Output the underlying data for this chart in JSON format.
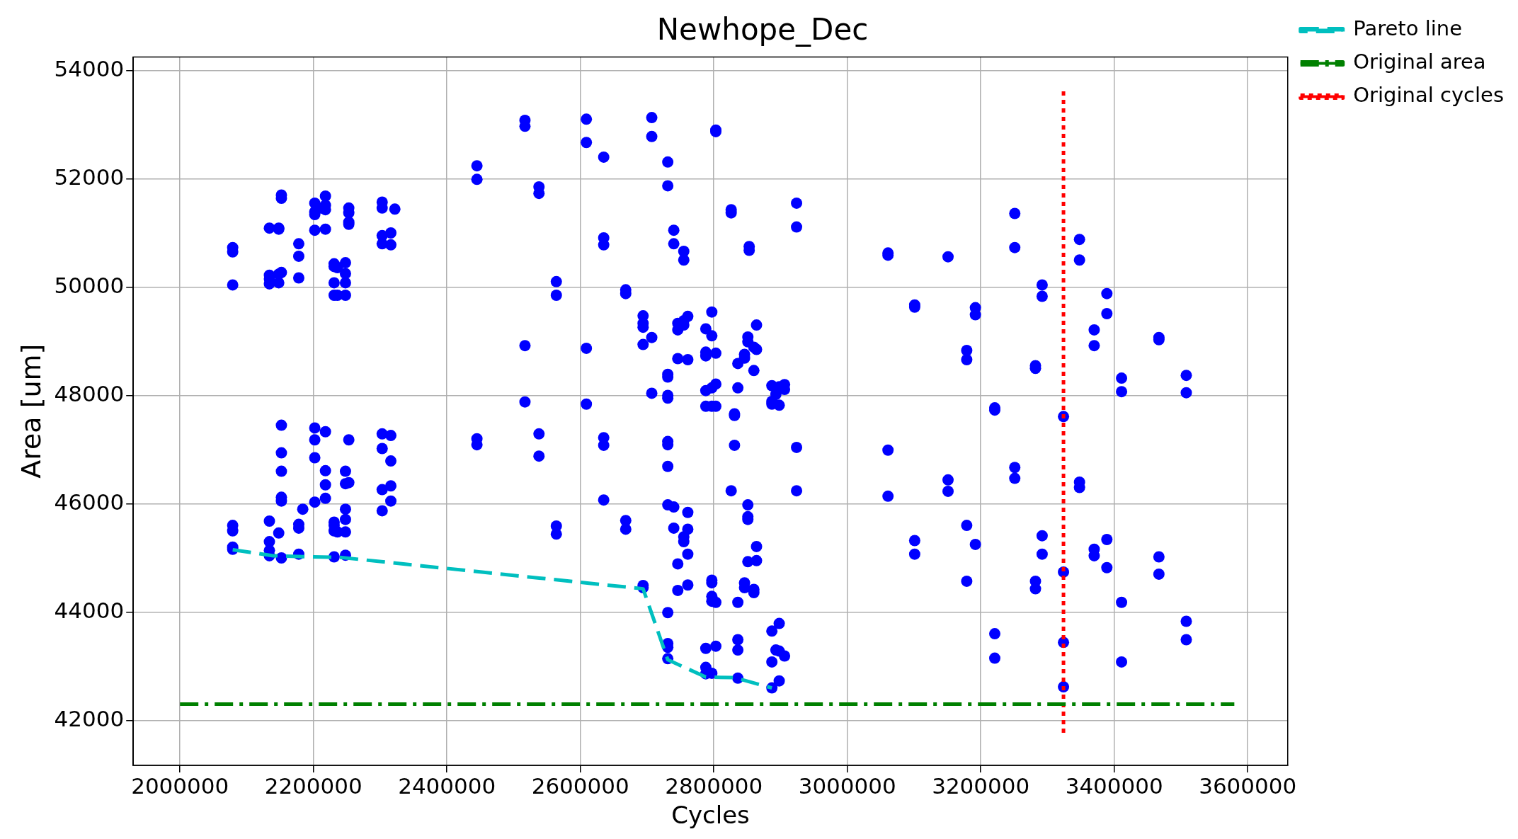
{
  "chart_data": {
    "type": "scatter",
    "title": "Newhope_Dec",
    "xlabel": "Cycles",
    "ylabel": "Area [um]",
    "xlim": [
      1930000,
      3660000
    ],
    "ylim": [
      41170,
      54250
    ],
    "xticks": [
      2000000,
      2200000,
      2400000,
      2600000,
      2800000,
      3000000,
      3200000,
      3400000,
      3600000
    ],
    "yticks": [
      42000,
      44000,
      46000,
      48000,
      50000,
      52000,
      54000
    ],
    "grid": true,
    "legend": "right",
    "marker": "circle",
    "series": [
      {
        "type": "scatter",
        "color": "#0000ff",
        "x": [
          2079000,
          2079000,
          2079000,
          2079000,
          2079000,
          2079000,
          2079000,
          2134000,
          2134000,
          2134000,
          2134000,
          2134000,
          2134000,
          2134000,
          2134000,
          2148000,
          2148000,
          2148000,
          2148000,
          2148000,
          2152000,
          2152000,
          2152000,
          2152000,
          2152000,
          2152000,
          2152000,
          2152000,
          2152000,
          2178000,
          2178000,
          2178000,
          2178000,
          2178000,
          2178000,
          2184000,
          2202000,
          2202000,
          2202000,
          2202000,
          2202000,
          2202000,
          2202000,
          2202000,
          2211000,
          2218000,
          2218000,
          2218000,
          2218000,
          2218000,
          2218000,
          2218000,
          2218000,
          2231000,
          2231000,
          2231000,
          2231000,
          2231000,
          2231000,
          2231000,
          2231000,
          2236000,
          2236000,
          2236000,
          2248000,
          2248000,
          2248000,
          2248000,
          2248000,
          2248000,
          2248000,
          2248000,
          2248000,
          2248000,
          2253000,
          2253000,
          2253000,
          2253000,
          2253000,
          2253000,
          2303000,
          2303000,
          2303000,
          2303000,
          2303000,
          2303000,
          2303000,
          2303000,
          2316000,
          2316000,
          2316000,
          2316000,
          2316000,
          2316000,
          2322000,
          2445000,
          2445000,
          2445000,
          2445000,
          2517000,
          2517000,
          2517000,
          2517000,
          2538000,
          2538000,
          2538000,
          2538000,
          2564000,
          2564000,
          2564000,
          2564000,
          2609000,
          2609000,
          2609000,
          2609000,
          2635000,
          2635000,
          2635000,
          2635000,
          2635000,
          2635000,
          2668000,
          2668000,
          2668000,
          2668000,
          2694000,
          2694000,
          2694000,
          2694000,
          2694000,
          2694000,
          2707000,
          2707000,
          2707000,
          2707000,
          2731000,
          2731000,
          2731000,
          2731000,
          2731000,
          2731000,
          2731000,
          2731000,
          2731000,
          2731000,
          2731000,
          2731000,
          2731000,
          2731000,
          2740000,
          2740000,
          2740000,
          2740000,
          2746000,
          2746000,
          2746000,
          2746000,
          2746000,
          2755000,
          2755000,
          2755000,
          2755000,
          2755000,
          2755000,
          2761000,
          2761000,
          2761000,
          2761000,
          2761000,
          2761000,
          2788000,
          2788000,
          2788000,
          2788000,
          2788000,
          2788000,
          2788000,
          2788000,
          2797000,
          2797000,
          2797000,
          2797000,
          2797000,
          2797000,
          2797000,
          2797000,
          2797000,
          2803000,
          2803000,
          2803000,
          2803000,
          2803000,
          2803000,
          2803000,
          2826000,
          2826000,
          2826000,
          2831000,
          2831000,
          2831000,
          2836000,
          2836000,
          2836000,
          2836000,
          2836000,
          2836000,
          2846000,
          2846000,
          2846000,
          2846000,
          2851000,
          2851000,
          2851000,
          2851000,
          2851000,
          2851000,
          2853000,
          2853000,
          2860000,
          2860000,
          2860000,
          2860000,
          2864000,
          2864000,
          2864000,
          2864000,
          2887000,
          2887000,
          2887000,
          2887000,
          2887000,
          2887000,
          2893000,
          2893000,
          2898000,
          2898000,
          2898000,
          2898000,
          2898000,
          2906000,
          2906000,
          2906000,
          2924000,
          2924000,
          2924000,
          2924000,
          3061000,
          3061000,
          3061000,
          3061000,
          3101000,
          3101000,
          3101000,
          3101000,
          3151000,
          3151000,
          3151000,
          3179000,
          3179000,
          3179000,
          3179000,
          3192000,
          3192000,
          3192000,
          3221000,
          3221000,
          3221000,
          3221000,
          3251000,
          3251000,
          3251000,
          3251000,
          3282000,
          3282000,
          3282000,
          3282000,
          3292000,
          3292000,
          3292000,
          3292000,
          3324000,
          3324000,
          3324000,
          3324000,
          3348000,
          3348000,
          3348000,
          3348000,
          3370000,
          3370000,
          3370000,
          3370000,
          3389000,
          3389000,
          3389000,
          3389000,
          3411000,
          3411000,
          3411000,
          3411000,
          3467000,
          3467000,
          3467000,
          3467000,
          3508000,
          3508000,
          3508000,
          3508000
        ],
        "values": [
          50730,
          50650,
          50040,
          45600,
          45500,
          45200,
          45160,
          51090,
          50220,
          50150,
          50060,
          45680,
          45300,
          45140,
          45040,
          51090,
          51070,
          50240,
          50080,
          45460,
          51700,
          51640,
          50270,
          47450,
          46940,
          46600,
          46120,
          46050,
          45000,
          50800,
          50570,
          50170,
          45620,
          45550,
          45070,
          45900,
          51550,
          51390,
          51340,
          51050,
          47400,
          47180,
          46850,
          46030,
          51460,
          51680,
          51510,
          51430,
          51070,
          47330,
          46610,
          46350,
          46100,
          50430,
          50380,
          50080,
          49850,
          45660,
          45600,
          45500,
          45020,
          50360,
          49850,
          45480,
          50450,
          50250,
          50080,
          49850,
          46600,
          46370,
          45900,
          45710,
          45480,
          45050,
          51460,
          51370,
          51200,
          51160,
          47180,
          46390,
          51570,
          51460,
          50950,
          50800,
          47290,
          47020,
          46260,
          45870,
          51000,
          50780,
          47260,
          46790,
          46330,
          46050,
          51440,
          52240,
          51990,
          47200,
          47090,
          53080,
          52970,
          48920,
          47880,
          51850,
          51730,
          47290,
          46880,
          50100,
          49850,
          45590,
          45440,
          53100,
          52670,
          48870,
          47840,
          52400,
          50910,
          50780,
          47220,
          47080,
          46070,
          49950,
          49880,
          45690,
          45530,
          49470,
          49330,
          49260,
          48940,
          44490,
          44450,
          53130,
          52780,
          49070,
          48040,
          52310,
          51870,
          48390,
          48340,
          48000,
          47950,
          47150,
          47090,
          46690,
          45980,
          43990,
          43420,
          43350,
          43140,
          51050,
          50800,
          45940,
          45550,
          49330,
          49210,
          48680,
          44890,
          44400,
          50660,
          50500,
          49380,
          49300,
          45390,
          45300,
          49460,
          48660,
          45840,
          45530,
          45070,
          44500,
          49230,
          48800,
          48730,
          48090,
          47800,
          43330,
          42980,
          42860,
          49540,
          49100,
          48140,
          47800,
          44590,
          44540,
          44290,
          44200,
          42870,
          52900,
          52870,
          48780,
          48210,
          47800,
          44180,
          43370,
          51430,
          51370,
          46240,
          47660,
          47630,
          47080,
          48590,
          48140,
          44180,
          43490,
          43300,
          42780,
          48760,
          48690,
          44540,
          44450,
          49080,
          48990,
          45980,
          45760,
          45710,
          44930,
          50750,
          50680,
          48460,
          48890,
          44420,
          44360,
          49300,
          48850,
          45210,
          44950,
          48180,
          47890,
          47840,
          43650,
          43080,
          42600,
          48020,
          43300,
          48160,
          47820,
          43790,
          43280,
          42730,
          48200,
          48110,
          43190,
          51550,
          51110,
          47040,
          46240,
          50630,
          50590,
          46990,
          46140,
          49670,
          49630,
          45320,
          45070,
          50560,
          46440,
          46230,
          48830,
          48660,
          45600,
          44570,
          49620,
          49490,
          45250,
          47770,
          47730,
          43600,
          43150,
          51360,
          50730,
          46670,
          46470,
          48550,
          48500,
          44570,
          44430,
          50040,
          49830,
          45410,
          45070,
          47610,
          44740,
          43440,
          42620,
          50880,
          50500,
          46400,
          46300,
          49210,
          48920,
          45160,
          45040,
          49880,
          49510,
          45340,
          44820,
          48320,
          48070,
          44180,
          43080,
          49070,
          49030,
          45020,
          44700,
          48370,
          48050,
          43830,
          43490
        ]
      },
      {
        "type": "line",
        "name": "Pareto line",
        "color": "#00bfbf",
        "line_style": "dashed",
        "marker": "none",
        "x": [
          2079000,
          2140000,
          2200000,
          2240000,
          2694000,
          2731000,
          2788000,
          2831000,
          2887000
        ],
        "values": [
          45150,
          45040,
          45020,
          45010,
          44430,
          43120,
          42800,
          42790,
          42600
        ]
      },
      {
        "type": "line",
        "name": "Original area",
        "color": "#008000",
        "line_style": "dashdot",
        "marker": "none",
        "x": [
          2000000,
          3580000
        ],
        "values": [
          42300,
          42300
        ]
      },
      {
        "type": "line",
        "name": "Original cycles",
        "color": "#ff0000",
        "line_style": "dotted",
        "marker": "none",
        "x": [
          3324000,
          3324000
        ],
        "values": [
          41770,
          53660
        ]
      }
    ]
  }
}
